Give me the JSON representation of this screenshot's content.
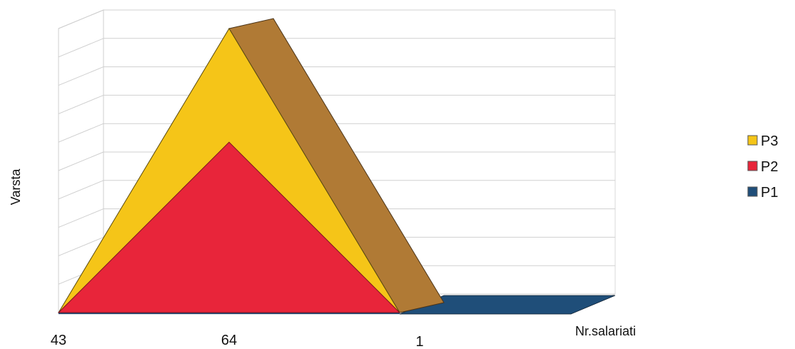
{
  "chart_data": {
    "type": "area",
    "subtype": "3d-stacked-area",
    "title": "",
    "xlabel": "Nr.salariati",
    "ylabel": "Varsta",
    "categories": [
      "43",
      "64",
      "1"
    ],
    "ylim": [
      0,
      10
    ],
    "grid": true,
    "legend_position": "right",
    "series": [
      {
        "name": "P1",
        "values": [
          0,
          0,
          0
        ],
        "color": "#1F4E79"
      },
      {
        "name": "P2",
        "values": [
          0,
          6,
          0
        ],
        "color": "#E8253A"
      },
      {
        "name": "P3",
        "values": [
          0,
          10,
          0
        ],
        "color": "#F5C518"
      }
    ],
    "side_color": "#B07A35"
  }
}
